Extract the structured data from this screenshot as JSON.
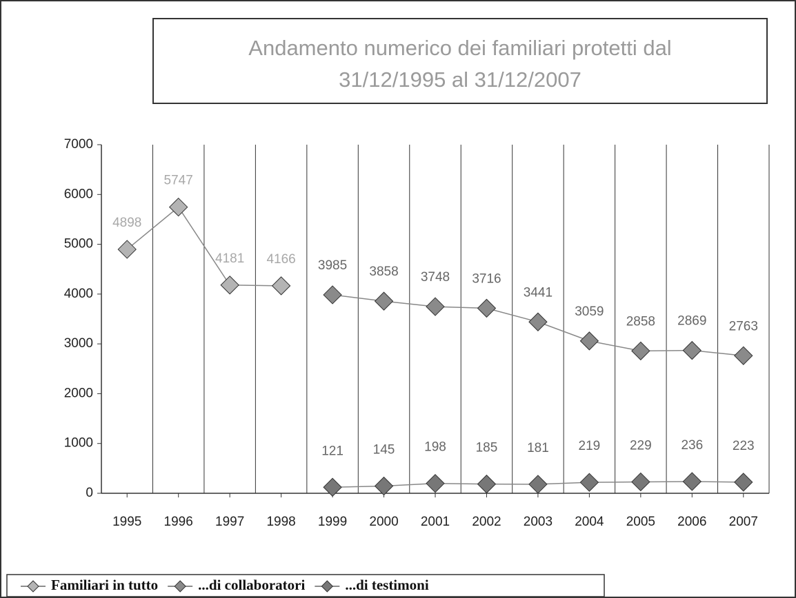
{
  "chart_data": {
    "type": "line",
    "title": [
      "Andamento numerico dei familiari protetti dal",
      "31/12/1995 al 31/12/2007"
    ],
    "categories": [
      "1995",
      "1996",
      "1997",
      "1998",
      "1999",
      "2000",
      "2001",
      "2002",
      "2003",
      "2004",
      "2005",
      "2006",
      "2007"
    ],
    "series": [
      {
        "name": "Familiari in tutto",
        "color": "#b4b4b4",
        "values": [
          4898,
          5747,
          4181,
          4166,
          null,
          null,
          null,
          null,
          null,
          null,
          null,
          null,
          null
        ]
      },
      {
        "name": "...di collaboratori",
        "color": "#8a8a8a",
        "values": [
          null,
          null,
          null,
          null,
          3985,
          3858,
          3748,
          3716,
          3441,
          3059,
          2858,
          2869,
          2763
        ]
      },
      {
        "name": "...di testimoni",
        "color": "#777777",
        "values": [
          null,
          null,
          null,
          null,
          121,
          145,
          198,
          185,
          181,
          219,
          229,
          236,
          223
        ]
      }
    ],
    "ylim": [
      0,
      7000
    ],
    "yticks": [
      0,
      1000,
      2000,
      3000,
      4000,
      5000,
      6000,
      7000
    ],
    "grid": true,
    "legend": "bottom"
  }
}
